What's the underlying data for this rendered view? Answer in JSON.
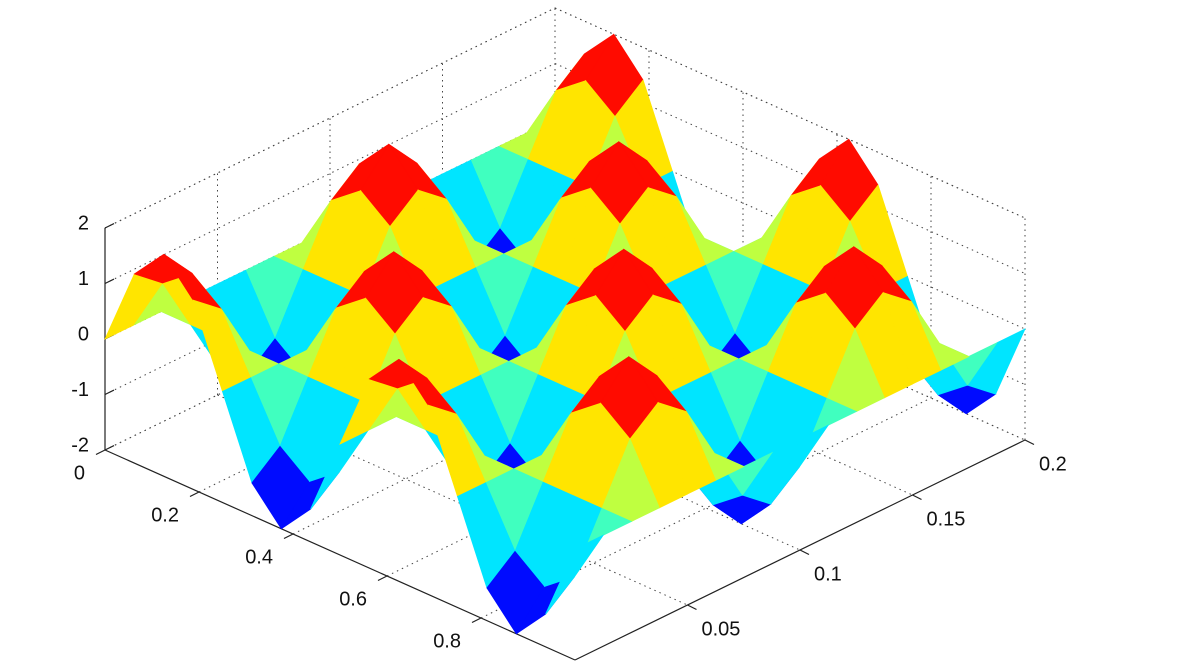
{
  "chart_data": {
    "type": "surface",
    "colormap": "jet",
    "grid": true,
    "x": [
      0,
      0.0625,
      0.125,
      0.1875,
      0.25,
      0.3125,
      0.375,
      0.4375,
      0.5,
      0.5625,
      0.625,
      0.6875,
      0.75,
      0.8125,
      0.875,
      0.9375,
      1
    ],
    "y": [
      0,
      0.0125,
      0.025,
      0.0375,
      0.05,
      0.0625,
      0.075,
      0.0875,
      0.1,
      0.1125,
      0.125,
      0.1375,
      0.15,
      0.1625,
      0.175,
      0.1875,
      0.2
    ],
    "z": [
      [
        0,
        0,
        0,
        0,
        0,
        0,
        0,
        0,
        0,
        0,
        0,
        0,
        0,
        0,
        0,
        0,
        0
      ],
      [
        1.41,
        1,
        0,
        -1,
        -1.41,
        -1,
        0,
        1,
        1.41,
        1,
        0,
        -1,
        -1.41,
        -1,
        0,
        1,
        1.41
      ],
      [
        2,
        1.41,
        0,
        -1.41,
        -2,
        -1.41,
        0,
        1.41,
        2,
        1.41,
        0,
        -1.41,
        -2,
        -1.41,
        0,
        1.41,
        2
      ],
      [
        1.41,
        1,
        0,
        -1,
        -1.41,
        -1,
        0,
        1,
        1.41,
        1,
        0,
        -1,
        -1.41,
        -1,
        0,
        1,
        1.41
      ],
      [
        0,
        0,
        0,
        0,
        0,
        0,
        0,
        0,
        0,
        0,
        0,
        0,
        0,
        0,
        0,
        0,
        0
      ],
      [
        -1.41,
        -1,
        0,
        1,
        1.41,
        1,
        0,
        -1,
        -1.41,
        -1,
        0,
        1,
        1.41,
        1,
        0,
        -1,
        -1.41
      ],
      [
        -2,
        -1.41,
        0,
        1.41,
        2,
        1.41,
        0,
        -1.41,
        -2,
        -1.41,
        0,
        1.41,
        2,
        1.41,
        0,
        -1.41,
        -2
      ],
      [
        -1.41,
        -1,
        0,
        1,
        1.41,
        1,
        0,
        -1,
        -1.41,
        -1,
        0,
        1,
        1.41,
        1,
        0,
        -1,
        -1.41
      ],
      [
        0,
        0,
        0,
        0,
        0,
        0,
        0,
        0,
        0,
        0,
        0,
        0,
        0,
        0,
        0,
        0,
        0
      ],
      [
        1.41,
        1,
        0,
        -1,
        -1.41,
        -1,
        0,
        1,
        1.41,
        1,
        0,
        -1,
        -1.41,
        -1,
        0,
        1,
        1.41
      ],
      [
        2,
        1.41,
        0,
        -1.41,
        -2,
        -1.41,
        0,
        1.41,
        2,
        1.41,
        0,
        -1.41,
        -2,
        -1.41,
        0,
        1.41,
        2
      ],
      [
        1.41,
        1,
        0,
        -1,
        -1.41,
        -1,
        0,
        1,
        1.41,
        1,
        0,
        -1,
        -1.41,
        -1,
        0,
        1,
        1.41
      ],
      [
        0,
        0,
        0,
        0,
        0,
        0,
        0,
        0,
        0,
        0,
        0,
        0,
        0,
        0,
        0,
        0,
        0
      ],
      [
        -1.41,
        -1,
        0,
        1,
        1.41,
        1,
        0,
        -1,
        -1.41,
        -1,
        0,
        1,
        1.41,
        1,
        0,
        -1,
        -1.41
      ],
      [
        -2,
        -1.41,
        0,
        1.41,
        2,
        1.41,
        0,
        -1.41,
        -2,
        -1.41,
        0,
        1.41,
        2,
        1.41,
        0,
        -1.41,
        -2
      ],
      [
        -1.41,
        -1,
        0,
        1,
        1.41,
        1,
        0,
        -1,
        -1.41,
        -1,
        0,
        1,
        1.41,
        1,
        0,
        -1,
        -1.41
      ],
      [
        0,
        0,
        0,
        0,
        0,
        0,
        0,
        0,
        0,
        0,
        0,
        0,
        0,
        0,
        0,
        0,
        0
      ]
    ],
    "xlim": [
      0,
      1
    ],
    "ylim": [
      0,
      0.2
    ],
    "zlim": [
      -2,
      2
    ],
    "xticks": [
      0,
      0.2,
      0.4,
      0.6,
      0.8
    ],
    "yticks": [
      0.05,
      0.1,
      0.15,
      0.2
    ],
    "zticks": [
      -2,
      -1,
      0,
      1,
      2
    ]
  }
}
